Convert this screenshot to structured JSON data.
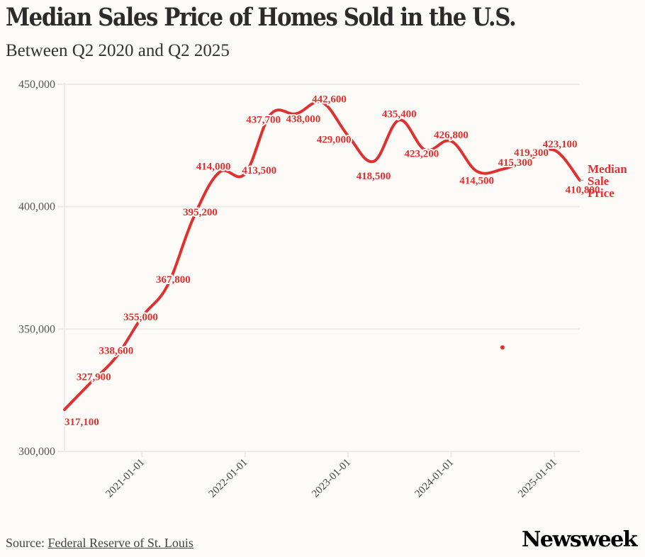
{
  "header": {
    "title": "Median Sales Price of Homes Sold in the U.S.",
    "subtitle": "Between Q2 2020 and Q2 2025"
  },
  "footer": {
    "source_prefix": "Source: ",
    "source_link": "Federal Reserve of St. Louis",
    "brand": "Newsweek"
  },
  "colors": {
    "background": "#fcfbf7",
    "line": "#e03131",
    "grid": "#ebebeb",
    "axis_text": "#555555"
  },
  "chart_data": {
    "type": "line",
    "title": "Median Sales Price of Homes Sold in the U.S.",
    "subtitle": "Between Q2 2020 and Q2 2025",
    "xlabel": "",
    "ylabel": "",
    "x": [
      "2020-04-01",
      "2020-07-01",
      "2020-10-01",
      "2021-01-01",
      "2021-04-01",
      "2021-07-01",
      "2021-10-01",
      "2022-01-01",
      "2022-04-01",
      "2022-07-01",
      "2022-10-01",
      "2023-01-01",
      "2023-04-01",
      "2023-07-01",
      "2023-10-01",
      "2024-01-01",
      "2024-04-01",
      "2024-07-01",
      "2024-10-01",
      "2025-01-01",
      "2025-04-01"
    ],
    "series": [
      {
        "name": "Median Sale Price",
        "label_lines": [
          "Median",
          "Sale",
          "Price"
        ],
        "values": [
          317100,
          327900,
          338600,
          355000,
          367800,
          395200,
          414000,
          413500,
          437700,
          438000,
          442600,
          429000,
          418500,
          435400,
          423200,
          426800,
          414500,
          415300,
          419300,
          423100,
          410800
        ],
        "data_labels": [
          "317,100",
          "327,900",
          "338,600",
          "355,000",
          "367,800",
          "395,200",
          "414,000",
          "413,500",
          "437,700",
          "438,000",
          "442,600",
          "429,000",
          "418,500",
          "435,400",
          "423,200",
          "426,800",
          "414,500",
          "415,300",
          "419,300",
          "423,100",
          "410,800"
        ]
      }
    ],
    "ylim": [
      300000,
      450000
    ],
    "yticks": [
      300000,
      350000,
      400000,
      450000
    ],
    "ytick_labels": [
      "300,000",
      "350,000",
      "400,000",
      "450,000"
    ],
    "xticks": [
      "2021-01-01",
      "2022-01-01",
      "2023-01-01",
      "2024-01-01",
      "2025-01-01"
    ],
    "xtick_labels": [
      "2021-01-01",
      "2022-01-01",
      "2023-01-01",
      "2024-01-01",
      "2025-01-01"
    ],
    "xlim": [
      "2020-04-01",
      "2025-04-01"
    ],
    "grid": "horizontal",
    "legend": "direct-label-right",
    "annotations": [
      {
        "type": "point",
        "x": "2024-07-01",
        "y": 342500
      }
    ]
  }
}
